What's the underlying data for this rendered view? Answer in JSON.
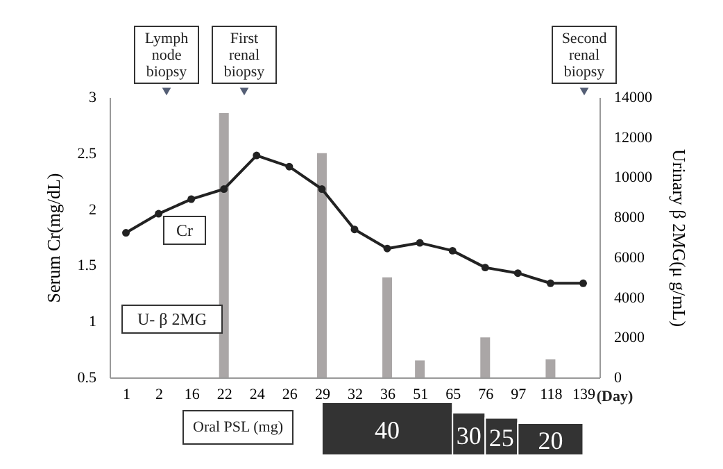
{
  "chart_data": {
    "type": "bar",
    "categories": [
      "1",
      "2",
      "16",
      "22",
      "24",
      "26",
      "29",
      "32",
      "36",
      "51",
      "65",
      "76",
      "97",
      "118",
      "139"
    ],
    "series": [
      {
        "name": "Cr",
        "type": "line",
        "color": "#222222",
        "values": [
          1.79,
          1.96,
          2.09,
          2.18,
          2.48,
          2.38,
          2.18,
          1.82,
          1.65,
          1.7,
          1.63,
          1.48,
          1.43,
          1.34,
          1.34
        ]
      },
      {
        "name": "U- β 2MG",
        "axis": "y2",
        "color": "#aaa6a6",
        "values": [
          null,
          null,
          null,
          13200,
          null,
          null,
          11200,
          null,
          5000,
          850,
          null,
          2000,
          null,
          900,
          null
        ]
      }
    ],
    "xlabel": "(Day)",
    "ylabel": "Serum Cr(mg/dL)",
    "y2label": "Urinary β 2MG(μ g/mL)",
    "ylim": [
      0.5,
      3
    ],
    "yticks": [
      0.5,
      1,
      1.5,
      2,
      2.5,
      3
    ],
    "y2lim": [
      0,
      14000
    ],
    "y2ticks": [
      0,
      2000,
      4000,
      6000,
      8000,
      10000,
      12000,
      14000
    ],
    "marker": "circle",
    "legend": false,
    "grid": false,
    "annotations": [
      "Lymph node biopsy",
      "First renal biopsy",
      "Second renal biopsy",
      "Oral PSL (mg)",
      "40",
      "30",
      "25",
      "20"
    ]
  }
}
